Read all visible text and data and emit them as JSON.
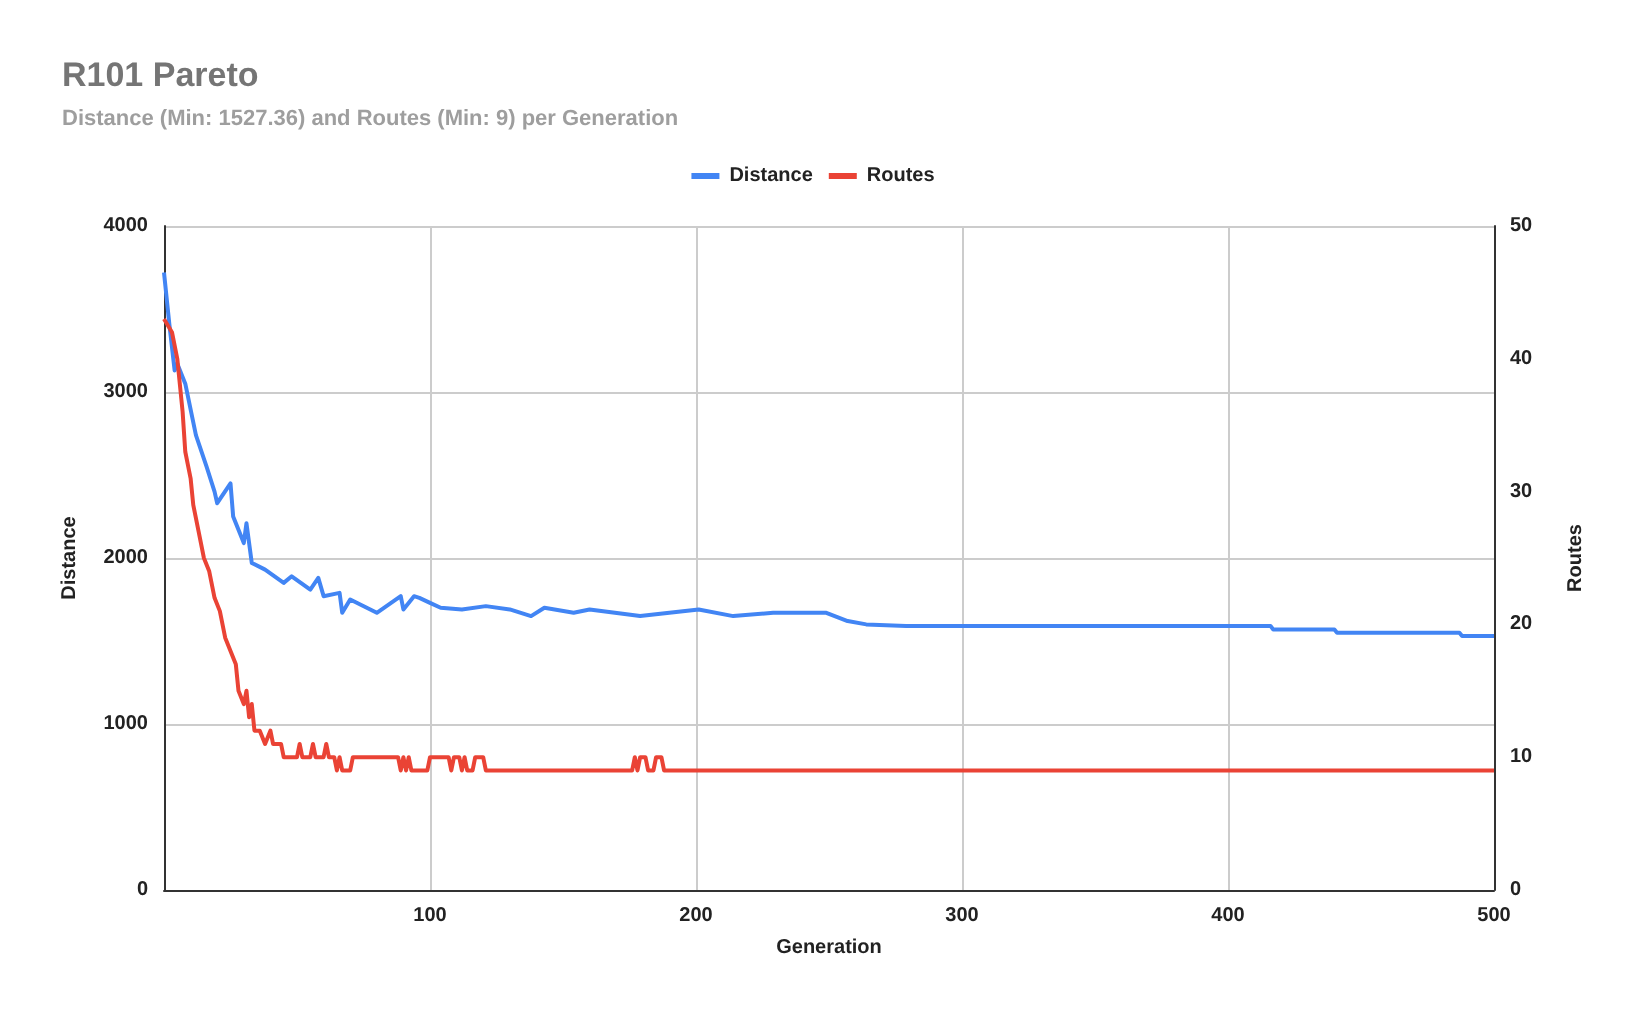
{
  "chart_data": {
    "type": "line",
    "title": "R101 Pareto",
    "subtitle": "Distance (Min: 1527.36) and Routes (Min: 9) per Generation",
    "xlabel": "Generation",
    "ylabel": "Distance",
    "y2label": "Routes",
    "xlim": [
      0,
      500
    ],
    "xticks": [
      100,
      200,
      300,
      400,
      500
    ],
    "ylim": [
      0,
      4000
    ],
    "yticks": [
      0,
      1000,
      2000,
      3000,
      4000
    ],
    "y2lim": [
      0,
      50
    ],
    "y2ticks": [
      0,
      10,
      20,
      30,
      40,
      50
    ],
    "grid": true,
    "legend": "top",
    "marker": "none",
    "line_style": "solid",
    "series": [
      {
        "name": "Distance",
        "color": "#4285f4",
        "x": [
          0,
          2,
          4,
          5,
          8,
          12,
          16,
          19,
          20,
          25,
          26,
          30,
          31,
          33,
          38,
          45,
          48,
          55,
          58,
          60,
          66,
          67,
          70,
          80,
          89,
          90,
          94,
          96,
          100,
          104,
          112,
          121,
          130,
          138,
          143,
          154,
          160,
          179,
          201,
          214,
          229,
          249,
          257,
          264,
          279,
          332,
          416,
          417,
          440,
          441,
          487,
          488,
          500
        ],
        "values": [
          3720,
          3410,
          3130,
          3170,
          3050,
          2740,
          2550,
          2400,
          2330,
          2450,
          2250,
          2090,
          2210,
          1970,
          1930,
          1850,
          1890,
          1810,
          1880,
          1770,
          1790,
          1670,
          1750,
          1670,
          1770,
          1690,
          1770,
          1760,
          1730,
          1700,
          1690,
          1710,
          1690,
          1650,
          1700,
          1670,
          1690,
          1650,
          1690,
          1650,
          1670,
          1670,
          1620,
          1600,
          1590,
          1590,
          1590,
          1570,
          1570,
          1550,
          1550,
          1530,
          1530
        ]
      },
      {
        "name": "Routes",
        "color": "#ea4335",
        "axis": "y2",
        "x": [
          0,
          3,
          5,
          6,
          7,
          8,
          9,
          10,
          11,
          13,
          15,
          17,
          19,
          21,
          23,
          25,
          27,
          28,
          30,
          31,
          32,
          33,
          34,
          36,
          38,
          40,
          41,
          44,
          45,
          50,
          51,
          52,
          55,
          56,
          57,
          60,
          61,
          62,
          64,
          65,
          66,
          67,
          70,
          71,
          88,
          89,
          90,
          91,
          92,
          93,
          99,
          100,
          107,
          108,
          109,
          111,
          112,
          113,
          114,
          116,
          117,
          120,
          121,
          176,
          177,
          178,
          179,
          181,
          182,
          184,
          185,
          187,
          188,
          500
        ],
        "values": [
          43,
          42,
          40,
          38,
          36,
          33,
          32,
          31,
          29,
          27,
          25,
          24,
          22,
          21,
          19,
          18,
          17,
          15,
          14,
          15,
          13,
          14,
          12,
          12,
          11,
          12,
          11,
          11,
          10,
          10,
          11,
          10,
          10,
          11,
          10,
          10,
          11,
          10,
          10,
          9,
          10,
          9,
          9,
          10,
          10,
          9,
          10,
          9,
          10,
          9,
          9,
          10,
          10,
          9,
          10,
          10,
          9,
          10,
          9,
          9,
          10,
          10,
          9,
          9,
          10,
          9,
          10,
          10,
          9,
          9,
          10,
          10,
          9,
          9
        ]
      }
    ]
  }
}
